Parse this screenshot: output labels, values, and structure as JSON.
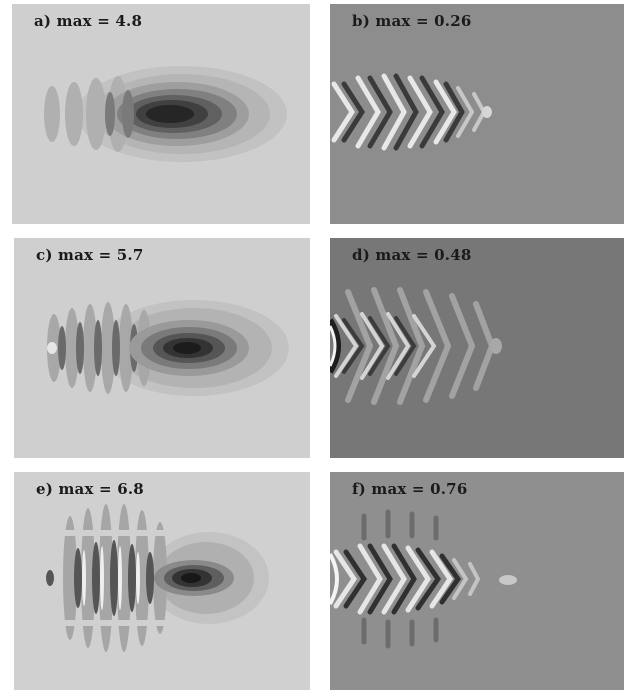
{
  "panels": [
    {
      "id": "a",
      "label": "a) max = 4.8",
      "background": "#cfcfcf"
    },
    {
      "id": "b",
      "label": "b) max = 0.26",
      "background": "#8d8d8d"
    },
    {
      "id": "c",
      "label": "c) max = 5.7",
      "background": "#cfcfcf"
    },
    {
      "id": "d",
      "label": "d) max = 0.48",
      "background": "#777777"
    },
    {
      "id": "e",
      "label": "e) max = 6.8",
      "background": "#d0d0d0"
    },
    {
      "id": "f",
      "label": "f) max = 0.76",
      "background": "#8f8f8f"
    }
  ]
}
